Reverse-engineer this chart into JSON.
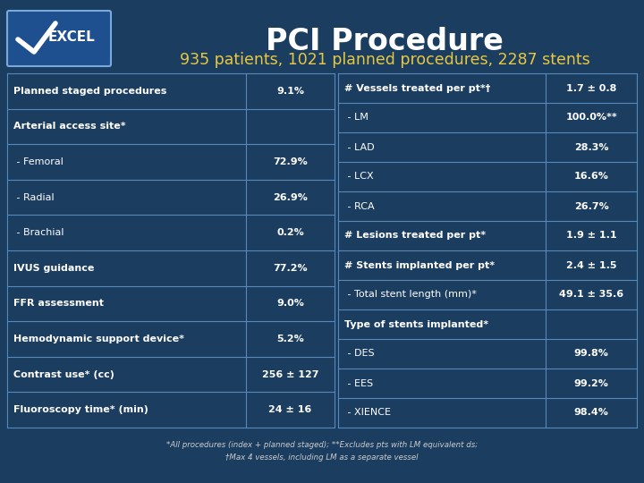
{
  "title": "PCI Procedure",
  "subtitle": "935 patients, 1021 planned procedures, 2287 stents",
  "bg_color": "#1b3d5f",
  "title_color": "#ffffff",
  "subtitle_color": "#e8c840",
  "border_color": "#5588bb",
  "cell_text_color": "#ffffff",
  "left_table": [
    [
      "Planned staged procedures",
      "9.1%",
      true
    ],
    [
      "Arterial access site*",
      "",
      true
    ],
    [
      " - Femoral",
      "72.9%",
      false
    ],
    [
      " - Radial",
      "26.9%",
      false
    ],
    [
      " - Brachial",
      "0.2%",
      false
    ],
    [
      "IVUS guidance",
      "77.2%",
      true
    ],
    [
      "FFR assessment",
      "9.0%",
      true
    ],
    [
      "Hemodynamic support device*",
      "5.2%",
      true
    ],
    [
      "Contrast use* (cc)",
      "256 ± 127",
      true
    ],
    [
      "Fluoroscopy time* (min)",
      "24 ± 16",
      true
    ]
  ],
  "right_table": [
    [
      "# Vessels treated per pt*†",
      "1.7 ± 0.8",
      true
    ],
    [
      " - LM",
      "100.0%**",
      false
    ],
    [
      " - LAD",
      "28.3%",
      false
    ],
    [
      " - LCX",
      "16.6%",
      false
    ],
    [
      " - RCA",
      "26.7%",
      false
    ],
    [
      "# Lesions treated per pt*",
      "1.9 ± 1.1",
      true
    ],
    [
      "# Stents implanted per pt*",
      "2.4 ± 1.5",
      true
    ],
    [
      " - Total stent length (mm)*",
      "49.1 ± 35.6",
      false
    ],
    [
      "Type of stents implanted*",
      "",
      true
    ],
    [
      " - DES",
      "99.8%",
      false
    ],
    [
      " - EES",
      "99.2%",
      false
    ],
    [
      " - XIENCE",
      "98.4%",
      false
    ]
  ],
  "footnote_line1": "*All procedures (index + planned staged); **Excludes pts with LM equivalent ds;",
  "footnote_line2": "†Max 4 vessels, including LM as a separate vessel"
}
